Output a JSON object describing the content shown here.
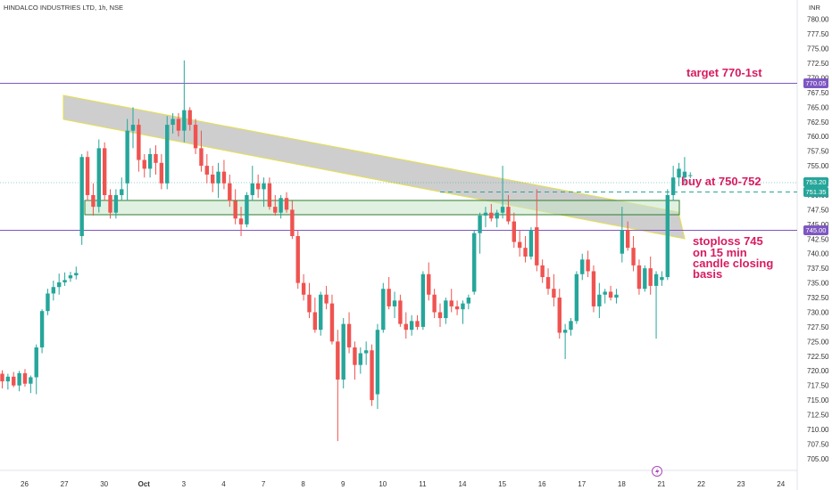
{
  "header": {
    "title": "HINDALCO INDUSTRIES LTD, 1h, NSE",
    "currency": "INR"
  },
  "chart_data": {
    "type": "candlestick",
    "title": "HINDALCO INDUSTRIES LTD, 1h, NSE",
    "ylim": [
      703,
      783
    ],
    "y_ticks": [
      "705.00",
      "707.50",
      "710.00",
      "712.50",
      "715.00",
      "717.50",
      "720.00",
      "722.50",
      "725.00",
      "727.50",
      "730.00",
      "732.50",
      "735.00",
      "737.50",
      "740.00",
      "742.50",
      "745.00",
      "747.50",
      "750.00",
      "752.50",
      "755.00",
      "757.50",
      "760.00",
      "762.50",
      "765.00",
      "767.50",
      "770.00",
      "772.50",
      "775.00",
      "777.50",
      "780.00"
    ],
    "x_ticks": [
      {
        "label": "26",
        "bar": 0
      },
      {
        "label": "27",
        "bar": 7
      },
      {
        "label": "30",
        "bar": 14
      },
      {
        "label": "Oct",
        "bar": 21
      },
      {
        "label": "3",
        "bar": 28
      },
      {
        "label": "4",
        "bar": 35
      },
      {
        "label": "7",
        "bar": 42
      },
      {
        "label": "8",
        "bar": 49
      },
      {
        "label": "9",
        "bar": 56
      },
      {
        "label": "10",
        "bar": 63
      },
      {
        "label": "11",
        "bar": 70
      },
      {
        "label": "14",
        "bar": 77
      },
      {
        "label": "15",
        "bar": 84
      },
      {
        "label": "16",
        "bar": 91
      },
      {
        "label": "17",
        "bar": 98
      },
      {
        "label": "18",
        "bar": 105
      },
      {
        "label": "21",
        "bar": 112
      },
      {
        "label": "22",
        "bar": 119
      },
      {
        "label": "23",
        "bar": 126
      },
      {
        "label": "24",
        "bar": 133
      }
    ],
    "candles": [
      [
        719.5,
        720.1,
        717.0,
        718.2
      ],
      [
        718.2,
        719.5,
        716.8,
        719.0
      ],
      [
        719.0,
        719.8,
        717.2,
        717.5
      ],
      [
        717.5,
        720.0,
        716.5,
        719.6
      ],
      [
        719.6,
        720.3,
        717.3,
        717.8
      ],
      [
        717.8,
        719.2,
        716.2,
        718.9
      ],
      [
        718.9,
        724.5,
        716.0,
        724.0
      ],
      [
        724.0,
        730.5,
        723.0,
        730.2
      ],
      [
        730.2,
        734.0,
        729.5,
        733.2
      ],
      [
        733.2,
        735.4,
        732.0,
        734.3
      ],
      [
        734.3,
        736.6,
        733.0,
        735.1
      ],
      [
        735.1,
        736.8,
        734.5,
        735.5
      ],
      [
        735.8,
        736.9,
        735.2,
        736.3
      ],
      [
        736.3,
        737.8,
        735.6,
        736.7
      ],
      [
        743.0,
        757.0,
        741.5,
        756.5
      ],
      [
        756.5,
        757.5,
        749.0,
        750.0
      ],
      [
        750.0,
        752.0,
        746.5,
        748.0
      ],
      [
        748.0,
        759.5,
        747.0,
        758.0
      ],
      [
        758.0,
        759.0,
        749.0,
        750.0
      ],
      [
        750.0,
        751.0,
        746.0,
        747.0
      ],
      [
        747.0,
        751.0,
        746.0,
        750.0
      ],
      [
        750.0,
        753.0,
        749.0,
        751.0
      ],
      [
        752.0,
        763.0,
        749.0,
        761.0
      ],
      [
        761.0,
        765.0,
        758.0,
        762.0
      ],
      [
        762.0,
        763.0,
        754.0,
        756.0
      ],
      [
        756.0,
        757.0,
        753.0,
        754.5
      ],
      [
        754.5,
        758.0,
        753.0,
        757.0
      ],
      [
        757.0,
        758.5,
        753.5,
        755.5
      ],
      [
        755.5,
        757.0,
        751.0,
        752.0
      ],
      [
        752.0,
        763.5,
        751.0,
        762.0
      ],
      [
        762.0,
        764.0,
        760.5,
        763.0
      ],
      [
        763.0,
        764.0,
        760.0,
        761.0
      ],
      [
        761.0,
        773.0,
        759.0,
        764.5
      ],
      [
        764.5,
        765.0,
        761.0,
        762.0
      ],
      [
        762.0,
        763.0,
        757.0,
        758.0
      ],
      [
        758.0,
        761.0,
        754.0,
        755.0
      ],
      [
        755.0,
        757.0,
        752.0,
        753.5
      ],
      [
        753.5,
        755.0,
        750.5,
        752.0
      ],
      [
        752.0,
        755.5,
        749.5,
        754.0
      ],
      [
        754.0,
        756.0,
        751.0,
        752.0
      ],
      [
        752.0,
        753.5,
        748.0,
        749.0
      ],
      [
        749.0,
        751.0,
        745.0,
        746.0
      ],
      [
        746.0,
        748.0,
        743.0,
        745.0
      ],
      [
        745.0,
        750.5,
        744.5,
        750.0
      ],
      [
        750.0,
        755.0,
        749.0,
        752.0
      ],
      [
        752.0,
        753.5,
        749.5,
        751.0
      ],
      [
        751.0,
        753.0,
        748.0,
        752.0
      ],
      [
        752.0,
        753.0,
        747.5,
        748.0
      ],
      [
        748.0,
        750.0,
        746.5,
        747.0
      ],
      [
        747.0,
        750.0,
        746.0,
        749.5
      ],
      [
        749.5,
        750.5,
        747.0,
        747.5
      ],
      [
        747.5,
        749.0,
        742.5,
        743.0
      ],
      [
        743.0,
        744.0,
        734.0,
        735.0
      ],
      [
        735.0,
        736.5,
        732.0,
        733.0
      ],
      [
        733.0,
        735.0,
        729.0,
        730.0
      ],
      [
        730.0,
        732.5,
        726.5,
        727.0
      ],
      [
        727.0,
        733.5,
        726.0,
        733.0
      ],
      [
        733.0,
        734.5,
        730.5,
        731.5
      ],
      [
        731.5,
        733.0,
        724.5,
        725.0
      ],
      [
        725.0,
        727.0,
        708.0,
        718.5
      ],
      [
        718.5,
        729.0,
        717.0,
        728.0
      ],
      [
        728.0,
        730.0,
        723.0,
        724.0
      ],
      [
        724.0,
        725.0,
        718.5,
        721.0
      ],
      [
        721.0,
        724.0,
        719.5,
        723.0
      ],
      [
        723.0,
        725.0,
        721.0,
        723.5
      ],
      [
        723.5,
        724.5,
        714.0,
        715.0
      ],
      [
        716.0,
        728.0,
        713.5,
        727.0
      ],
      [
        727.0,
        735.0,
        726.5,
        734.0
      ],
      [
        734.0,
        736.0,
        730.5,
        731.0
      ],
      [
        731.0,
        733.5,
        729.0,
        732.0
      ],
      [
        732.0,
        733.0,
        727.5,
        728.0
      ],
      [
        728.0,
        730.0,
        725.5,
        727.0
      ],
      [
        727.0,
        729.5,
        726.0,
        728.5
      ],
      [
        728.5,
        729.5,
        727.0,
        727.5
      ],
      [
        727.5,
        737.0,
        727.0,
        736.5
      ],
      [
        736.5,
        738.5,
        732.0,
        733.0
      ],
      [
        733.0,
        734.0,
        729.0,
        730.0
      ],
      [
        730.0,
        731.5,
        727.5,
        729.0
      ],
      [
        729.0,
        732.5,
        728.0,
        732.0
      ],
      [
        732.0,
        734.0,
        730.0,
        731.0
      ],
      [
        731.0,
        732.0,
        729.5,
        730.5
      ],
      [
        730.5,
        732.0,
        728.0,
        731.5
      ],
      [
        731.5,
        733.0,
        730.5,
        732.5
      ],
      [
        733.5,
        744.0,
        733.0,
        743.5
      ],
      [
        743.5,
        747.0,
        740.0,
        746.5
      ],
      [
        746.5,
        748.0,
        744.5,
        747.0
      ],
      [
        747.0,
        748.5,
        745.5,
        746.0
      ],
      [
        746.0,
        747.5,
        744.5,
        747.0
      ],
      [
        747.0,
        755.0,
        746.0,
        748.0
      ],
      [
        748.0,
        750.0,
        745.0,
        745.5
      ],
      [
        745.5,
        747.0,
        741.0,
        742.0
      ],
      [
        742.0,
        744.0,
        739.5,
        741.0
      ],
      [
        741.0,
        743.0,
        738.5,
        739.5
      ],
      [
        739.5,
        744.5,
        739.0,
        744.0
      ],
      [
        744.5,
        751.0,
        737.0,
        738.0
      ],
      [
        738.0,
        739.0,
        735.0,
        736.0
      ],
      [
        736.0,
        737.5,
        733.0,
        734.0
      ],
      [
        734.0,
        736.5,
        731.0,
        732.5
      ],
      [
        732.5,
        734.0,
        725.5,
        726.5
      ],
      [
        726.5,
        728.0,
        722.0,
        727.0
      ],
      [
        727.0,
        729.0,
        726.0,
        728.5
      ],
      [
        728.5,
        737.0,
        728.0,
        736.5
      ],
      [
        736.5,
        740.0,
        735.5,
        739.0
      ],
      [
        739.0,
        740.5,
        736.0,
        737.0
      ],
      [
        737.0,
        738.0,
        730.0,
        731.0
      ],
      [
        731.0,
        735.0,
        729.0,
        733.0
      ],
      [
        733.0,
        734.0,
        731.5,
        733.5
      ],
      [
        733.5,
        734.5,
        732.0,
        732.5
      ],
      [
        732.5,
        734.0,
        731.5,
        733.0
      ],
      [
        740.0,
        748.0,
        738.5,
        744.0
      ],
      [
        744.0,
        745.5,
        740.5,
        741.0
      ],
      [
        741.0,
        743.0,
        737.0,
        738.0
      ],
      [
        738.0,
        739.0,
        733.0,
        734.0
      ],
      [
        734.0,
        738.0,
        733.5,
        737.5
      ],
      [
        737.5,
        739.5,
        733.0,
        734.5
      ],
      [
        734.5,
        737.0,
        725.5,
        736.5
      ],
      [
        735.5,
        737.0,
        734.5,
        736.0
      ],
      [
        736.0,
        751.0,
        735.5,
        750.0
      ],
      [
        750.0,
        755.0,
        749.0,
        753.0
      ],
      [
        753.0,
        755.5,
        751.5,
        754.5
      ],
      [
        753.0,
        756.5,
        752.0,
        754.0
      ],
      [
        753.4,
        753.9,
        752.9,
        753.4
      ]
    ],
    "colors": {
      "up": "#26a69a",
      "down": "#ef5350"
    },
    "levels": [
      {
        "value": 770.05,
        "label": "770.05",
        "color": "#7e57c2"
      },
      {
        "value": 745.0,
        "label": "745.00",
        "color": "#7e57c2"
      },
      {
        "value": 753.2,
        "label": "753.20",
        "color": "#26a69a"
      },
      {
        "value": 751.35,
        "label": "751.35",
        "color": "#26a69a"
      }
    ],
    "annotations": [
      {
        "lines": [
          "target 770-1st"
        ]
      },
      {
        "lines": [
          "buy at 750-752"
        ]
      },
      {
        "lines": [
          "stoploss 745",
          "on 15 min",
          "candle closing",
          "basis"
        ]
      }
    ]
  }
}
